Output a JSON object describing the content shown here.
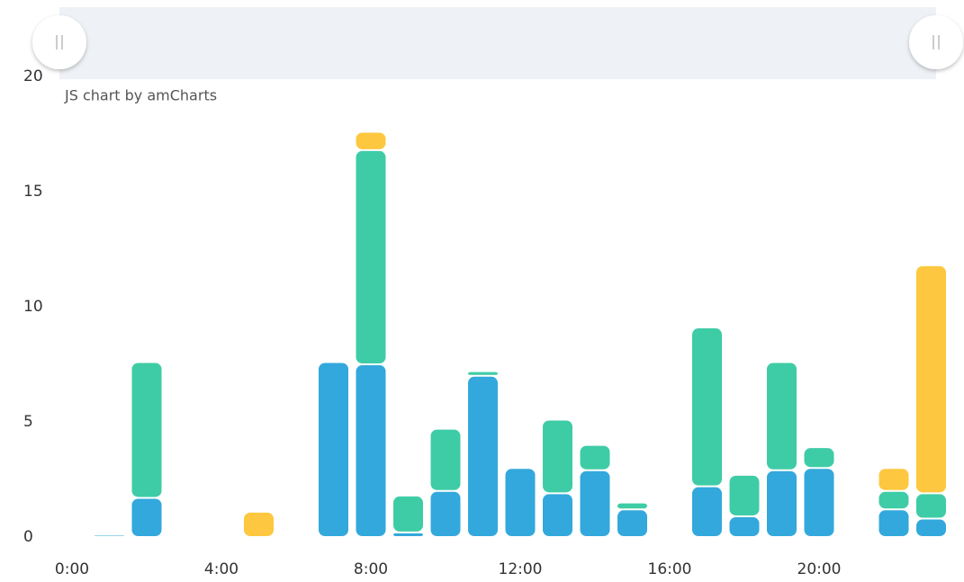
{
  "chart_data": {
    "type": "bar",
    "stacked": true,
    "watermark": "JS chart by amCharts",
    "categories": [
      "0:00",
      null,
      null,
      null,
      "4:00",
      null,
      null,
      null,
      "8:00",
      null,
      null,
      null,
      "12:00",
      null,
      null,
      null,
      "16:00",
      null,
      null,
      null,
      "20:00",
      null,
      null,
      null
    ],
    "series": [
      {
        "color": "#33a8dc",
        "values": [
          0,
          0.1,
          1.7,
          0,
          0,
          0,
          0,
          7.6,
          7.5,
          0.2,
          2.0,
          7.0,
          3.0,
          1.9,
          2.9,
          1.2,
          0,
          2.2,
          0.9,
          2.9,
          3.0,
          0,
          1.2,
          0.8
        ]
      },
      {
        "color": "#3ecca6",
        "values": [
          0,
          0,
          5.9,
          0,
          0,
          0,
          0,
          0,
          9.3,
          1.6,
          2.7,
          0.2,
          0,
          3.2,
          1.1,
          0.3,
          0,
          6.9,
          1.8,
          4.7,
          0.9,
          0,
          0.8,
          1.1
        ]
      },
      {
        "color": "#fdc83f",
        "values": [
          0,
          0,
          0,
          0,
          0,
          1.1,
          0,
          0,
          0.8,
          0,
          0,
          0,
          0,
          0,
          0,
          0,
          0,
          0,
          0,
          0,
          0,
          0,
          1.0,
          9.9
        ]
      }
    ],
    "ylim": [
      0,
      20
    ],
    "yticks": [
      0,
      5,
      10,
      15,
      20
    ],
    "grid": false
  }
}
